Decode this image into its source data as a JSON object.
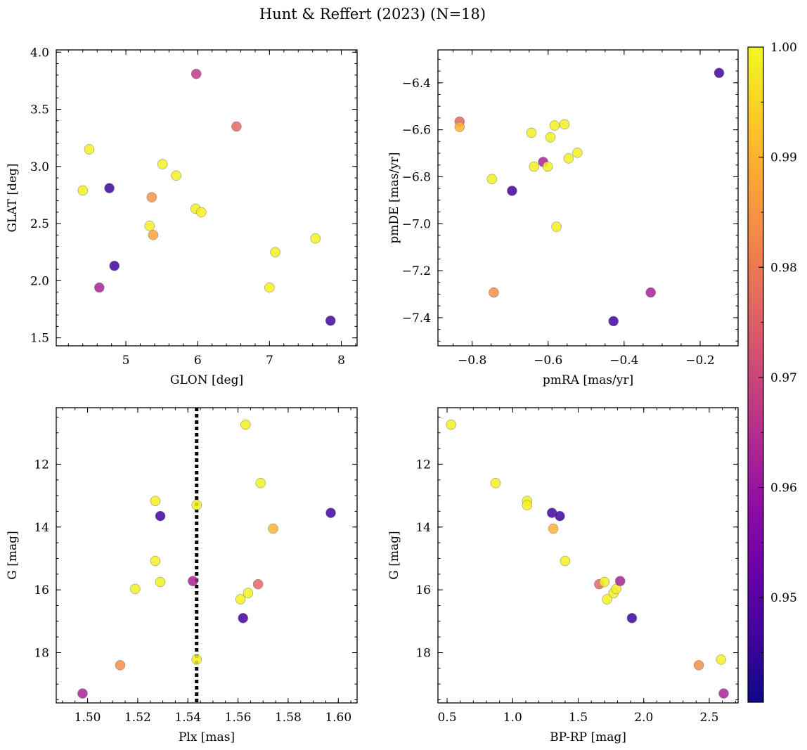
{
  "figure": {
    "title": "Hunt & Reffert (2023) (N=18)",
    "colorbar": {
      "min": 0.9405,
      "max": 1.0,
      "ticks": [
        0.95,
        0.96,
        0.97,
        0.98,
        0.99,
        1.0
      ],
      "tick_labels": [
        "0.95",
        "0.96",
        "0.97",
        "0.98",
        "0.99",
        "1.00"
      ],
      "colormap": "plasma"
    }
  },
  "chart_data": [
    {
      "type": "scatter",
      "id": "glon-glat",
      "xlabel": "GLON [deg]",
      "ylabel": "GLAT [deg]",
      "xlim": [
        4.03,
        8.22
      ],
      "ylim": [
        1.43,
        4.02
      ],
      "y_inverted": false,
      "xticks": [
        5,
        6,
        7,
        8
      ],
      "xtick_labels": [
        "5",
        "6",
        "7",
        "8"
      ],
      "yticks": [
        1.5,
        2.0,
        2.5,
        3.0,
        3.5,
        4.0
      ],
      "ytick_labels": [
        "1.5",
        "2.0",
        "2.5",
        "3.0",
        "3.5",
        "4.0"
      ],
      "x_minor": 0.2,
      "y_minor": 0.1,
      "points": [
        {
          "x": 4.4,
          "y": 2.79,
          "c": 1.0
        },
        {
          "x": 4.49,
          "y": 3.15,
          "c": 1.0
        },
        {
          "x": 4.77,
          "y": 2.81,
          "c": 0.9405
        },
        {
          "x": 4.84,
          "y": 2.13,
          "c": 0.9405
        },
        {
          "x": 4.63,
          "y": 1.94,
          "c": 0.959
        },
        {
          "x": 5.33,
          "y": 2.48,
          "c": 1.0
        },
        {
          "x": 5.36,
          "y": 2.73,
          "c": 0.984
        },
        {
          "x": 5.38,
          "y": 2.4,
          "c": 0.987
        },
        {
          "x": 5.51,
          "y": 3.02,
          "c": 1.0
        },
        {
          "x": 5.7,
          "y": 2.92,
          "c": 1.0
        },
        {
          "x": 5.97,
          "y": 2.63,
          "c": 1.0
        },
        {
          "x": 5.98,
          "y": 3.81,
          "c": 0.964
        },
        {
          "x": 6.05,
          "y": 2.6,
          "c": 1.0
        },
        {
          "x": 6.54,
          "y": 3.35,
          "c": 0.975
        },
        {
          "x": 7.0,
          "y": 1.94,
          "c": 1.0
        },
        {
          "x": 7.08,
          "y": 2.25,
          "c": 1.0
        },
        {
          "x": 7.64,
          "y": 2.37,
          "c": 1.0
        },
        {
          "x": 7.85,
          "y": 1.65,
          "c": 0.9405
        }
      ]
    },
    {
      "type": "scatter",
      "id": "pmra-pmde",
      "xlabel": "pmRA [mas/yr]",
      "ylabel": "pmDE [mas/yr]",
      "xlim": [
        -0.89,
        -0.1
      ],
      "ylim": [
        -7.52,
        -6.26
      ],
      "y_inverted": false,
      "xticks": [
        -0.8,
        -0.6,
        -0.4,
        -0.2
      ],
      "xtick_labels": [
        "−0.8",
        "−0.6",
        "−0.4",
        "−0.2"
      ],
      "yticks": [
        -7.4,
        -7.2,
        -7.0,
        -6.8,
        -6.6,
        -6.4
      ],
      "ytick_labels": [
        "−7.4",
        "−7.2",
        "−7.0",
        "−6.8",
        "−6.6",
        "−6.4"
      ],
      "x_minor": 0.05,
      "y_minor": 0.05,
      "points": [
        {
          "x": -0.833,
          "y": -6.565,
          "c": 0.975
        },
        {
          "x": -0.833,
          "y": -6.588,
          "c": 0.99
        },
        {
          "x": -0.748,
          "y": -6.81,
          "c": 1.0
        },
        {
          "x": -0.743,
          "y": -7.293,
          "c": 0.983
        },
        {
          "x": -0.695,
          "y": -6.86,
          "c": 0.9405
        },
        {
          "x": -0.644,
          "y": -6.613,
          "c": 1.0
        },
        {
          "x": -0.637,
          "y": -6.757,
          "c": 1.0
        },
        {
          "x": -0.613,
          "y": -6.737,
          "c": 0.959
        },
        {
          "x": -0.601,
          "y": -6.757,
          "c": 1.0
        },
        {
          "x": -0.594,
          "y": -6.632,
          "c": 1.0
        },
        {
          "x": -0.583,
          "y": -6.582,
          "c": 1.0
        },
        {
          "x": -0.578,
          "y": -7.013,
          "c": 1.0
        },
        {
          "x": -0.557,
          "y": -6.577,
          "c": 1.0
        },
        {
          "x": -0.546,
          "y": -6.722,
          "c": 1.0
        },
        {
          "x": -0.523,
          "y": -6.698,
          "c": 1.0
        },
        {
          "x": -0.428,
          "y": -7.415,
          "c": 0.9405
        },
        {
          "x": -0.33,
          "y": -7.293,
          "c": 0.959
        },
        {
          "x": -0.15,
          "y": -6.358,
          "c": 0.9405
        }
      ]
    },
    {
      "type": "scatter",
      "id": "plx-g",
      "xlabel": "Plx [mas]",
      "ylabel": "G [mag]",
      "xlim": [
        1.4875,
        1.6075
      ],
      "ylim": [
        19.6,
        10.2
      ],
      "y_inverted": true,
      "xticks": [
        1.5,
        1.52,
        1.54,
        1.56,
        1.58,
        1.6
      ],
      "xtick_labels": [
        "1.50",
        "1.52",
        "1.54",
        "1.56",
        "1.58",
        "1.60"
      ],
      "yticks": [
        12,
        14,
        16,
        18
      ],
      "ytick_labels": [
        "12",
        "14",
        "16",
        "18"
      ],
      "x_minor": 0.005,
      "y_minor": 0.5,
      "vline": {
        "x": 1.5435,
        "style": "dotted",
        "color": "#000000"
      },
      "points": [
        {
          "x": 1.498,
          "y": 19.3,
          "c": 0.959
        },
        {
          "x": 1.513,
          "y": 18.4,
          "c": 0.983
        },
        {
          "x": 1.519,
          "y": 15.97,
          "c": 1.0
        },
        {
          "x": 1.527,
          "y": 13.17,
          "c": 1.0
        },
        {
          "x": 1.527,
          "y": 15.08,
          "c": 1.0
        },
        {
          "x": 1.529,
          "y": 13.65,
          "c": 0.9405
        },
        {
          "x": 1.529,
          "y": 15.75,
          "c": 1.0
        },
        {
          "x": 1.542,
          "y": 15.72,
          "c": 0.959
        },
        {
          "x": 1.5435,
          "y": 13.3,
          "c": 1.0
        },
        {
          "x": 1.5435,
          "y": 18.22,
          "c": 1.0
        },
        {
          "x": 1.561,
          "y": 16.3,
          "c": 1.0
        },
        {
          "x": 1.562,
          "y": 16.9,
          "c": 0.9405
        },
        {
          "x": 1.563,
          "y": 10.74,
          "c": 1.0
        },
        {
          "x": 1.564,
          "y": 16.1,
          "c": 1.0
        },
        {
          "x": 1.568,
          "y": 15.82,
          "c": 0.975
        },
        {
          "x": 1.569,
          "y": 12.6,
          "c": 1.0
        },
        {
          "x": 1.574,
          "y": 14.05,
          "c": 0.99
        },
        {
          "x": 1.597,
          "y": 13.55,
          "c": 0.9405
        }
      ]
    },
    {
      "type": "scatter",
      "id": "bprp-g",
      "xlabel": "BP-RP [mag]",
      "ylabel": "G [mag]",
      "xlim": [
        0.43,
        2.72
      ],
      "ylim": [
        19.6,
        10.2
      ],
      "y_inverted": true,
      "xticks": [
        0.5,
        1.0,
        1.5,
        2.0,
        2.5
      ],
      "xtick_labels": [
        "0.5",
        "1.0",
        "1.5",
        "2.0",
        "2.5"
      ],
      "yticks": [
        12,
        14,
        16,
        18
      ],
      "ytick_labels": [
        "12",
        "14",
        "16",
        "18"
      ],
      "x_minor": 0.1,
      "y_minor": 0.5,
      "points": [
        {
          "x": 0.53,
          "y": 10.74,
          "c": 1.0
        },
        {
          "x": 0.87,
          "y": 12.6,
          "c": 1.0
        },
        {
          "x": 1.11,
          "y": 13.17,
          "c": 1.0
        },
        {
          "x": 1.11,
          "y": 13.3,
          "c": 1.0
        },
        {
          "x": 1.3,
          "y": 13.55,
          "c": 0.9405
        },
        {
          "x": 1.31,
          "y": 14.05,
          "c": 0.99
        },
        {
          "x": 1.36,
          "y": 13.65,
          "c": 0.9405
        },
        {
          "x": 1.4,
          "y": 15.08,
          "c": 1.0
        },
        {
          "x": 1.66,
          "y": 15.82,
          "c": 0.975
        },
        {
          "x": 1.7,
          "y": 15.75,
          "c": 1.0
        },
        {
          "x": 1.72,
          "y": 16.3,
          "c": 1.0
        },
        {
          "x": 1.77,
          "y": 16.1,
          "c": 1.0
        },
        {
          "x": 1.79,
          "y": 15.97,
          "c": 1.0
        },
        {
          "x": 1.82,
          "y": 15.72,
          "c": 0.959
        },
        {
          "x": 1.91,
          "y": 16.9,
          "c": 0.9405
        },
        {
          "x": 2.42,
          "y": 18.4,
          "c": 0.983
        },
        {
          "x": 2.59,
          "y": 18.22,
          "c": 1.0
        },
        {
          "x": 2.61,
          "y": 19.3,
          "c": 0.959
        }
      ]
    }
  ]
}
